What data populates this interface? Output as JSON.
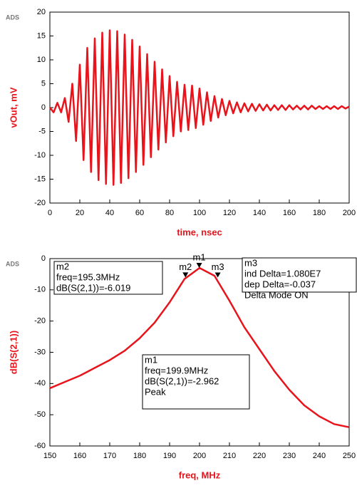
{
  "chart_data": [
    {
      "type": "line",
      "tag": "ADS",
      "xlabel": "time, nsec",
      "ylabel": "vOut, mV",
      "xlim": [
        0,
        200
      ],
      "xticks": [
        0,
        20,
        40,
        60,
        80,
        100,
        120,
        140,
        160,
        180,
        200
      ],
      "ylim": [
        -20,
        20
      ],
      "yticks": [
        -20,
        -15,
        -10,
        -5,
        0,
        5,
        10,
        15,
        20
      ],
      "x": [
        0,
        2.5,
        5,
        7.5,
        10,
        12.5,
        15,
        17.5,
        20,
        22.5,
        25,
        27.5,
        30,
        32.5,
        35,
        37.5,
        40,
        42.5,
        45,
        47.5,
        50,
        52.5,
        55,
        57.5,
        60,
        62.5,
        65,
        67.5,
        70,
        72.5,
        75,
        77.5,
        80,
        82.5,
        85,
        87.5,
        90,
        92.5,
        95,
        97.5,
        100,
        102.5,
        105,
        107.5,
        110,
        112.5,
        115,
        117.5,
        120,
        122.5,
        125,
        127.5,
        130,
        132.5,
        135,
        137.5,
        140,
        142.5,
        145,
        147.5,
        150,
        152.5,
        155,
        157.5,
        160,
        162.5,
        165,
        167.5,
        170,
        172.5,
        175,
        177.5,
        180,
        182.5,
        185,
        187.5,
        190,
        192.5,
        195,
        197.5,
        200
      ],
      "series": [
        {
          "name": "vOut",
          "color": "#e8141c",
          "values": [
            0,
            -1,
            1,
            -1,
            2,
            -3,
            5,
            -7,
            9,
            -11,
            12.5,
            -13.5,
            14.5,
            -15.2,
            15.7,
            -16,
            16.2,
            -16.2,
            16,
            -15.8,
            15.3,
            -14.8,
            14.2,
            -13.5,
            12.8,
            -12,
            11.2,
            -10.4,
            9.6,
            -8.8,
            8,
            -7.3,
            6.6,
            -6,
            5.4,
            -5,
            4.8,
            -4.7,
            4.6,
            -4.3,
            4,
            -3.6,
            3.2,
            -2.8,
            2.4,
            -2.1,
            1.8,
            -1.6,
            1.4,
            -1.2,
            1.1,
            -1,
            0.9,
            -0.8,
            0.8,
            -0.7,
            0.7,
            -0.6,
            0.6,
            -0.6,
            0.5,
            -0.5,
            0.5,
            -0.5,
            0.5,
            -0.4,
            0.4,
            -0.4,
            0.4,
            -0.4,
            0.4,
            -0.3,
            0.3,
            -0.3,
            0.3,
            -0.3,
            0.3,
            -0.3,
            0.3,
            -0.2,
            0.2
          ]
        }
      ],
      "markers": []
    },
    {
      "type": "line",
      "tag": "ADS",
      "xlabel": "freq, MHz",
      "ylabel": "dB(S(2,1))",
      "xlim": [
        150,
        250
      ],
      "xticks": [
        150,
        160,
        170,
        180,
        190,
        200,
        210,
        220,
        230,
        240,
        250
      ],
      "ylim": [
        -60,
        0
      ],
      "yticks": [
        -60,
        -50,
        -40,
        -30,
        -20,
        -10,
        0
      ],
      "x": [
        150,
        155,
        160,
        165,
        170,
        175,
        180,
        185,
        190,
        195,
        200,
        205,
        210,
        215,
        220,
        225,
        230,
        235,
        240,
        245,
        250
      ],
      "series": [
        {
          "name": "dB(S(2,1))",
          "color": "#e8141c",
          "values": [
            -41.5,
            -39.5,
            -37.5,
            -35,
            -32.5,
            -29.5,
            -25.5,
            -20.5,
            -14,
            -6.5,
            -3,
            -5.5,
            -13.5,
            -22,
            -29,
            -36,
            -42,
            -47,
            -50.5,
            -53,
            -54
          ]
        }
      ],
      "markers": [
        {
          "name": "m2",
          "x": 195.3,
          "y": -6.019,
          "lines": [
            "m2",
            "freq=195.3MHz",
            "dB(S(2,1))=-6.019"
          ]
        },
        {
          "name": "m1",
          "x": 199.9,
          "y": -2.962,
          "lines": [
            "m1",
            "freq=199.9MHz",
            "dB(S(2,1))=-2.962",
            "Peak"
          ]
        },
        {
          "name": "m3",
          "x": 206.1,
          "y": -6.056,
          "lines": [
            "m3",
            "ind Delta=1.080E7",
            "dep Delta=-0.037",
            "Delta Mode ON"
          ]
        }
      ]
    }
  ]
}
